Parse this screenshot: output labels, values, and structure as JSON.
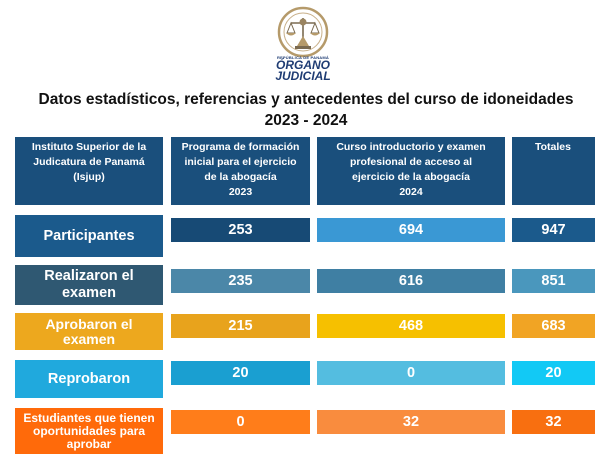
{
  "logo": {
    "small_text": "REPÚBLICA DE PANAMÁ",
    "line1": "ÓRGANO",
    "line2": "JUDICIAL"
  },
  "title": {
    "line1": "Datos estadísticos, referencias y antecedentes del curso de idoneidades",
    "line2": "2023 - 2024"
  },
  "headers": [
    {
      "lines": [
        "Instituto Superior de la",
        "Judicatura de Panamá",
        "(Isjup)"
      ]
    },
    {
      "lines": [
        "Programa de formación",
        "inicial para el ejercicio",
        "de la abogacía",
        "2023"
      ]
    },
    {
      "lines": [
        "Curso introductorio y examen",
        "profesional de acceso al",
        "ejercicio de la abogacía",
        "2024"
      ]
    },
    {
      "lines": [
        "Totales"
      ]
    }
  ],
  "rows": [
    {
      "label": "Participantes",
      "v2023": "253",
      "v2024": "694",
      "total": "947"
    },
    {
      "label": "Realizaron el examen",
      "v2023": "235",
      "v2024": "616",
      "total": "851"
    },
    {
      "label": "Aprobaron el examen",
      "v2023": "215",
      "v2024": "468",
      "total": "683"
    },
    {
      "label": "Reprobaron",
      "v2023": "20",
      "v2024": "0",
      "total": "20"
    },
    {
      "label": "Estudiantes que tienen oportunidades para aprobar",
      "v2023": "0",
      "v2024": "32",
      "total": "32"
    }
  ],
  "colors": {
    "header": "#1a4f7c",
    "row_participantes": [
      "#1b5a8c",
      "#174a75",
      "#3a98d4",
      "#1b5a8c"
    ],
    "row_realizaron": [
      "#2f5872",
      "#4b87a8",
      "#3f7fa3",
      "#4a97bd"
    ],
    "row_aprobaron": [
      "#eda81e",
      "#e8a31c",
      "#f6c000",
      "#f1a424"
    ],
    "row_reprobaron": [
      "#20a9dd",
      "#1a9fd1",
      "#54bde0",
      "#12c9f5"
    ],
    "row_estudiantes": [
      "#ff6a0a",
      "#ff7d1a",
      "#f98c3e",
      "#f86f10"
    ]
  }
}
